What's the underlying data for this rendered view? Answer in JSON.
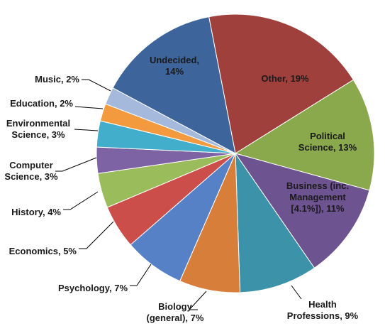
{
  "chart_data": {
    "type": "pie",
    "title": "",
    "start_category": "Other",
    "direction": "clockwise",
    "slices": [
      {
        "label": "Other, 19%",
        "category": "Other",
        "value": 19,
        "color": "#A0403C"
      },
      {
        "label": "Political Science, 13%",
        "category": "Political Science",
        "value": 13,
        "color": "#8AA84C"
      },
      {
        "label": "Business (inc. Management [4.1%]), 11%",
        "category": "Business (inc. Management [4.1%])",
        "value": 11,
        "color": "#6E5391"
      },
      {
        "label": "Health Professions, 9%",
        "category": "Health Professions",
        "value": 9,
        "color": "#3C93A9"
      },
      {
        "label": "Biology (general), 7%",
        "category": "Biology (general)",
        "value": 7,
        "color": "#D77F3A"
      },
      {
        "label": "Psychology, 7%",
        "category": "Psychology",
        "value": 7,
        "color": "#5681C6"
      },
      {
        "label": "Economics, 5%",
        "category": "Economics",
        "value": 5,
        "color": "#CC4E4B"
      },
      {
        "label": "History, 4%",
        "category": "History",
        "value": 4,
        "color": "#9BBC5A"
      },
      {
        "label": "Computer Science, 3%",
        "category": "Computer Science",
        "value": 3,
        "color": "#7D63A3"
      },
      {
        "label": "Environmental Science, 3%",
        "category": "Environmental Science",
        "value": 3,
        "color": "#43AECB"
      },
      {
        "label": "Education, 2%",
        "category": "Education",
        "value": 2,
        "color": "#F39A3E"
      },
      {
        "label": "Music, 2%",
        "category": "Music",
        "value": 2,
        "color": "#A5B9DD"
      },
      {
        "label": "Undecided, 14%",
        "category": "Undecided",
        "value": 14,
        "color": "#3E649C"
      }
    ]
  }
}
